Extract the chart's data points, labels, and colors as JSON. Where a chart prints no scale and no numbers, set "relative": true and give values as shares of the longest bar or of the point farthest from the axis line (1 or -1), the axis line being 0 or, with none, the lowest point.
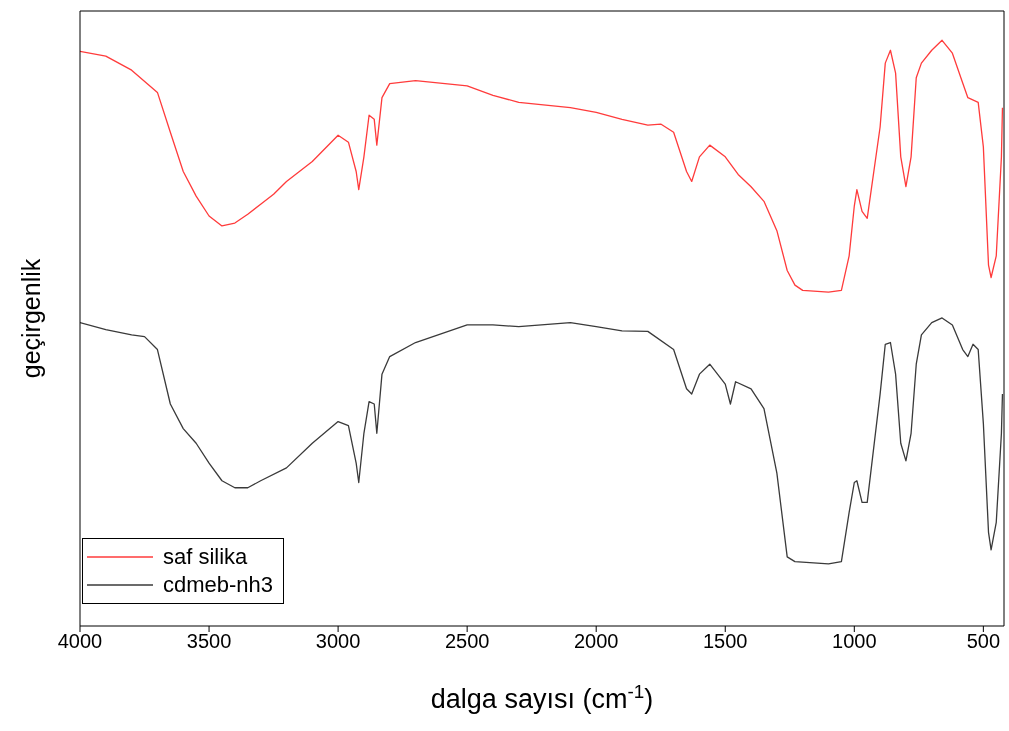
{
  "chart_data": {
    "type": "line",
    "relative": true,
    "xlabel": "dalga sayısı (cm$^{-1}$)",
    "ylabel": "geçirgenlik",
    "xlim": [
      4000,
      420
    ],
    "xticks": [
      4000,
      3500,
      3000,
      2500,
      2000,
      1500,
      1000,
      500
    ],
    "legend": "bottom left",
    "marker": "none",
    "line_style": "solid",
    "series": [
      {
        "name": "saf silika",
        "color": "#ff3b3b",
        "x": [
          4000,
          3900,
          3800,
          3700,
          3650,
          3600,
          3550,
          3500,
          3450,
          3400,
          3350,
          3300,
          3250,
          3200,
          3100,
          3000,
          2960,
          2930,
          2920,
          2900,
          2880,
          2860,
          2850,
          2830,
          2800,
          2700,
          2500,
          2400,
          2300,
          2100,
          2000,
          1900,
          1800,
          1750,
          1700,
          1650,
          1630,
          1600,
          1560,
          1500,
          1450,
          1400,
          1350,
          1300,
          1260,
          1230,
          1200,
          1100,
          1050,
          1020,
          1000,
          990,
          970,
          950,
          900,
          880,
          860,
          840,
          820,
          800,
          780,
          760,
          740,
          700,
          660,
          620,
          580,
          560,
          520,
          500,
          480,
          470,
          450,
          430,
          426
        ],
        "values": [
          0.981,
          0.973,
          0.949,
          0.911,
          0.843,
          0.776,
          0.734,
          0.7,
          0.683,
          0.688,
          0.703,
          0.72,
          0.737,
          0.759,
          0.793,
          0.838,
          0.826,
          0.776,
          0.745,
          0.801,
          0.872,
          0.865,
          0.821,
          0.902,
          0.926,
          0.931,
          0.922,
          0.906,
          0.894,
          0.885,
          0.877,
          0.865,
          0.855,
          0.857,
          0.843,
          0.776,
          0.759,
          0.801,
          0.821,
          0.801,
          0.771,
          0.75,
          0.725,
          0.675,
          0.607,
          0.582,
          0.573,
          0.57,
          0.573,
          0.632,
          0.717,
          0.745,
          0.708,
          0.696,
          0.852,
          0.961,
          0.983,
          0.944,
          0.801,
          0.75,
          0.801,
          0.936,
          0.961,
          0.983,
          1,
          0.978,
          0.927,
          0.902,
          0.894,
          0.818,
          0.616,
          0.595,
          0.632,
          0.801,
          0.885
        ]
      },
      {
        "name": "cdmeb-nh3",
        "color": "#3a3a3a",
        "x": [
          4000,
          3900,
          3800,
          3750,
          3700,
          3650,
          3600,
          3550,
          3500,
          3450,
          3400,
          3350,
          3300,
          3200,
          3100,
          3000,
          2960,
          2930,
          2920,
          2900,
          2880,
          2860,
          2850,
          2830,
          2800,
          2700,
          2500,
          2400,
          2300,
          2100,
          2000,
          1900,
          1800,
          1700,
          1650,
          1630,
          1600,
          1560,
          1500,
          1480,
          1460,
          1400,
          1350,
          1300,
          1260,
          1230,
          1100,
          1050,
          1020,
          1000,
          990,
          970,
          950,
          900,
          880,
          860,
          840,
          820,
          800,
          780,
          760,
          740,
          700,
          660,
          620,
          580,
          560,
          540,
          520,
          500,
          480,
          470,
          450,
          430,
          426
        ],
        "values": [
          0.518,
          0.506,
          0.497,
          0.494,
          0.472,
          0.379,
          0.337,
          0.312,
          0.278,
          0.248,
          0.236,
          0.236,
          0.248,
          0.27,
          0.312,
          0.349,
          0.342,
          0.278,
          0.245,
          0.329,
          0.383,
          0.379,
          0.329,
          0.43,
          0.46,
          0.484,
          0.514,
          0.514,
          0.511,
          0.518,
          0.511,
          0.504,
          0.503,
          0.472,
          0.405,
          0.396,
          0.43,
          0.447,
          0.413,
          0.379,
          0.417,
          0.405,
          0.371,
          0.261,
          0.118,
          0.11,
          0.106,
          0.11,
          0.194,
          0.245,
          0.248,
          0.211,
          0.211,
          0.396,
          0.481,
          0.484,
          0.43,
          0.312,
          0.282,
          0.329,
          0.447,
          0.497,
          0.518,
          0.526,
          0.514,
          0.472,
          0.46,
          0.481,
          0.472,
          0.346,
          0.16,
          0.13,
          0.177,
          0.329,
          0.396
        ]
      }
    ]
  }
}
